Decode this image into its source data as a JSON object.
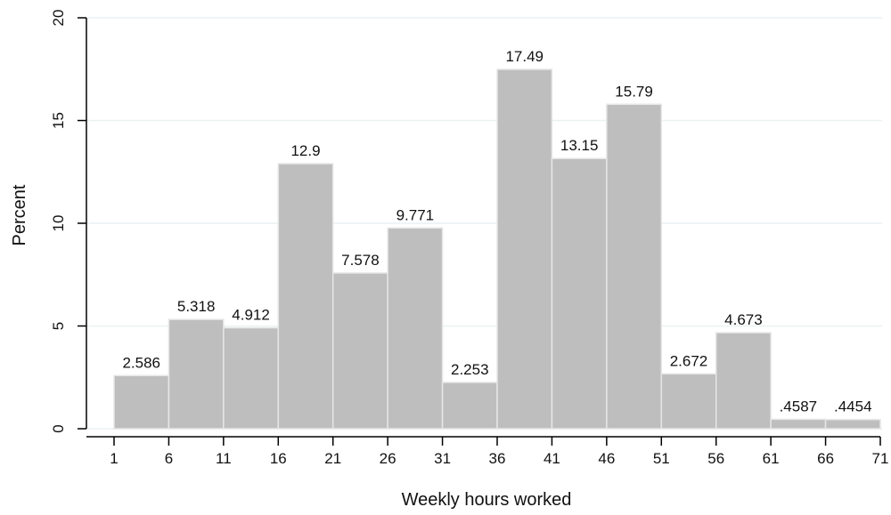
{
  "chart_data": {
    "type": "bar",
    "xlabel": "Weekly hours worked",
    "ylabel": "Percent",
    "xlim": [
      1,
      71
    ],
    "ylim": [
      0,
      20
    ],
    "x_ticks": [
      "1",
      "6",
      "11",
      "16",
      "21",
      "26",
      "31",
      "36",
      "41",
      "46",
      "51",
      "56",
      "61",
      "66",
      "71"
    ],
    "y_ticks": [
      "0",
      "5",
      "10",
      "15",
      "20"
    ],
    "bins": [
      {
        "start": 1,
        "end": 6,
        "value": 2.586,
        "label": "2.586"
      },
      {
        "start": 6,
        "end": 11,
        "value": 5.318,
        "label": "5.318"
      },
      {
        "start": 11,
        "end": 16,
        "value": 4.912,
        "label": "4.912"
      },
      {
        "start": 16,
        "end": 21,
        "value": 12.9,
        "label": "12.9"
      },
      {
        "start": 21,
        "end": 26,
        "value": 7.578,
        "label": "7.578"
      },
      {
        "start": 26,
        "end": 31,
        "value": 9.771,
        "label": "9.771"
      },
      {
        "start": 31,
        "end": 36,
        "value": 2.253,
        "label": "2.253"
      },
      {
        "start": 36,
        "end": 41,
        "value": 17.49,
        "label": "17.49"
      },
      {
        "start": 41,
        "end": 46,
        "value": 13.15,
        "label": "13.15"
      },
      {
        "start": 46,
        "end": 51,
        "value": 15.79,
        "label": "15.79"
      },
      {
        "start": 51,
        "end": 56,
        "value": 2.672,
        "label": "2.672"
      },
      {
        "start": 56,
        "end": 61,
        "value": 4.673,
        "label": "4.673"
      },
      {
        "start": 61,
        "end": 66,
        "value": 0.4587,
        "label": ".4587"
      },
      {
        "start": 66,
        "end": 71,
        "value": 0.4454,
        "label": ".4454"
      }
    ],
    "grid": true,
    "colors": {
      "bar_fill": "#bebebe",
      "bar_edge": "#e6e6e6",
      "grid": "#eaf2f3",
      "axis": "#000000"
    }
  }
}
